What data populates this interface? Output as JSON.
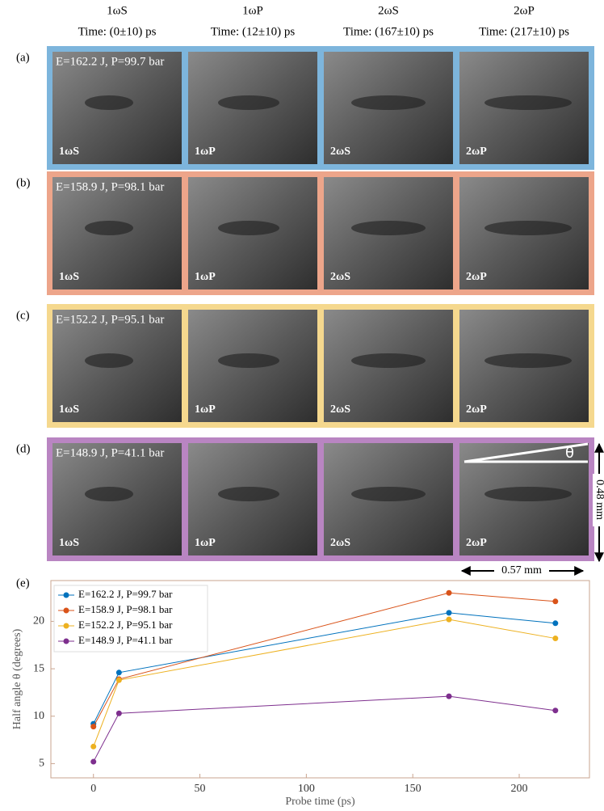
{
  "columns": [
    {
      "name": "1ωS",
      "time": "Time: (0±10) ps"
    },
    {
      "name": "1ωP",
      "time": "Time: (12±10) ps"
    },
    {
      "name": "2ωS",
      "time": "Time: (167±10) ps"
    },
    {
      "name": "2ωP",
      "time": "Time: (217±10) ps"
    }
  ],
  "rows": [
    {
      "label": "(a)",
      "params": "E=162.2 J, P=99.7 bar",
      "color": "#7db5dc"
    },
    {
      "label": "(b)",
      "params": "E=158.9 J, P=98.1 bar",
      "color": "#eda58a"
    },
    {
      "label": "(c)",
      "params": "E=152.2 J, P=95.1 bar",
      "color": "#f5d88e"
    },
    {
      "label": "(d)",
      "params": "E=148.9 J, P=41.1 bar",
      "color": "#b985c2"
    }
  ],
  "scale": {
    "angle": "θ",
    "height": "0.48 mm",
    "width": "0.57 mm"
  },
  "chart_data": {
    "type": "line",
    "title": "(e)",
    "x_label": "Probe time (ps)",
    "y_label": "Half angle θ (degrees)",
    "x": [
      0,
      12,
      167,
      217
    ],
    "series": [
      {
        "name": "E=162.2 J, P=99.7 bar",
        "color": "#0072bd",
        "values": [
          9.2,
          14.6,
          20.9,
          19.8
        ]
      },
      {
        "name": "E=158.9 J, P=98.1 bar",
        "color": "#d95319",
        "values": [
          8.9,
          13.9,
          23.0,
          22.1
        ]
      },
      {
        "name": "E=152.2 J, P=95.1 bar",
        "color": "#edb120",
        "values": [
          6.8,
          13.8,
          20.2,
          18.2
        ]
      },
      {
        "name": "E=148.9 J, P=41.1 bar",
        "color": "#7e2f8e",
        "values": [
          5.2,
          10.3,
          12.1,
          10.6
        ]
      }
    ],
    "xlim": [
      -20,
      233
    ],
    "ylim": [
      3.5,
      24.3
    ],
    "xticks": [
      0,
      50,
      100,
      150,
      200
    ],
    "yticks": [
      5,
      10,
      15,
      20
    ],
    "legend": "upper left"
  }
}
